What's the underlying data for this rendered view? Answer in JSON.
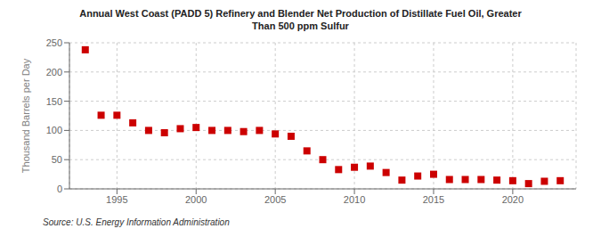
{
  "chart_data": {
    "type": "scatter",
    "title": "Annual West Coast (PADD 5) Refinery and Blender Net Production of Distillate Fuel Oil, Greater\nThan 500 ppm Sulfur",
    "ylabel": "Thousand Barrels per Day",
    "annotations": [
      "Source: U.S. Energy Information Administration"
    ],
    "x": [
      1993,
      1994,
      1995,
      1996,
      1997,
      1998,
      1999,
      2000,
      2001,
      2002,
      2003,
      2004,
      2005,
      2006,
      2007,
      2008,
      2009,
      2010,
      2011,
      2012,
      2013,
      2014,
      2015,
      2016,
      2017,
      2018,
      2019,
      2020,
      2021,
      2022,
      2023
    ],
    "values": [
      238,
      126,
      126,
      113,
      100,
      96,
      103,
      105,
      100,
      100,
      98,
      100,
      94,
      90,
      65,
      50,
      33,
      37,
      39,
      28,
      15,
      22,
      25,
      16,
      16,
      16,
      15,
      14,
      9,
      13,
      14
    ],
    "color": "#cc0000",
    "marker": "square",
    "xlim": [
      1992,
      2024
    ],
    "xticks": [
      1995,
      2000,
      2005,
      2010,
      2015,
      2020
    ],
    "ylim": [
      0,
      250
    ],
    "yticks": [
      0,
      50,
      100,
      150,
      200,
      250
    ],
    "grid": true
  }
}
